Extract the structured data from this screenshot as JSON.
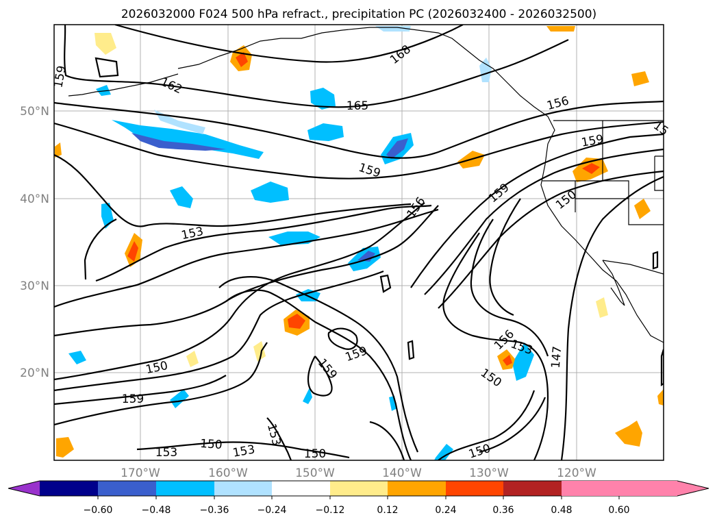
{
  "title": "2026032000 F024 500 hPa refract., precipitation PC (2026032400 - 2026032500)",
  "map": {
    "lat_labels": [
      "50°N",
      "40°N",
      "30°N",
      "20°N"
    ],
    "lon_labels": [
      "170°W",
      "160°W",
      "150°W",
      "140°W",
      "130°W",
      "120°W"
    ],
    "contour_labels": [
      "159",
      "162",
      "165",
      "168",
      "156",
      "159",
      "159",
      "156",
      "153",
      "150",
      "159",
      "150",
      "153",
      "150",
      "153",
      "159",
      "159",
      "156",
      "153",
      "150",
      "147",
      "150",
      "150",
      "153",
      "159",
      "15"
    ]
  },
  "colorbar": {
    "tick_labels": [
      "−0.60",
      "−0.48",
      "−0.36",
      "−0.24",
      "−0.12",
      "0.12",
      "0.24",
      "0.36",
      "0.48",
      "0.60"
    ],
    "colors": [
      "#9932cc",
      "#00008b",
      "#3a5fcd",
      "#00bfff",
      "#b0e2ff",
      "#ffffff",
      "#ffec8b",
      "#ffa500",
      "#ff4500",
      "#b22222",
      "#ff82ab"
    ]
  }
}
